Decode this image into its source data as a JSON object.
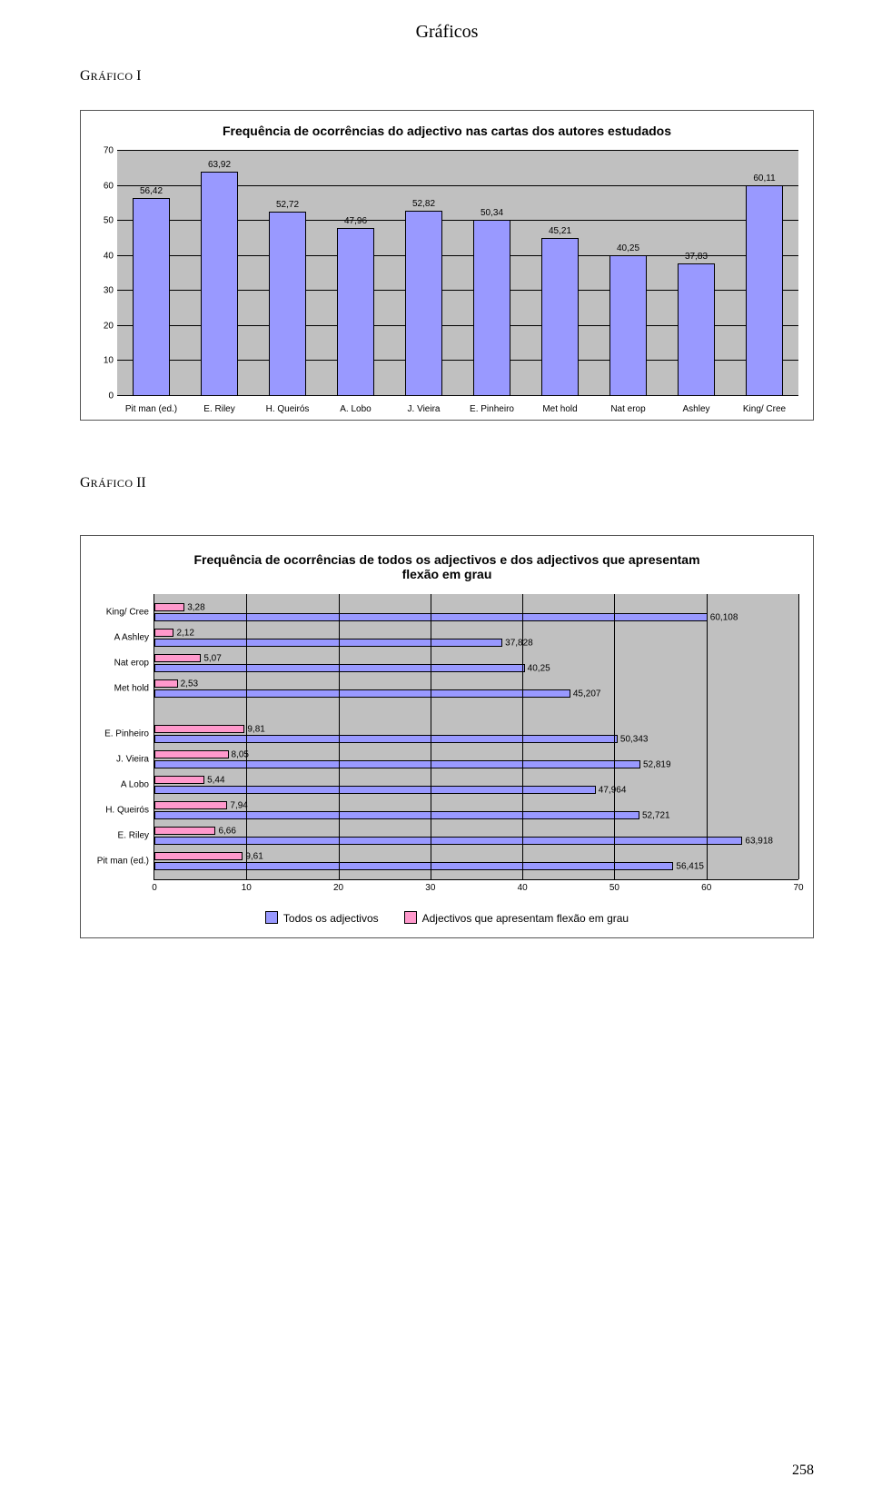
{
  "doc_title": "Gráficos",
  "page_number": "258",
  "heading1": {
    "lead": "G",
    "rest": "RÁFICO ",
    "suffix": "I"
  },
  "heading2": {
    "lead": "G",
    "rest": "RÁFICO ",
    "suffix": "II"
  },
  "chart1": {
    "type": "bar",
    "title": "Frequência de ocorrências do adjectivo nas cartas dos autores estudados",
    "categories": [
      "Pit man (ed.)",
      "E. Riley",
      "H. Queirós",
      "A. Lobo",
      "J. Vieira",
      "E. Pinheiro",
      "Met hold",
      "Nat erop",
      "Ashley",
      "King/ Cree"
    ],
    "values": [
      56.42,
      63.92,
      52.72,
      47.96,
      52.82,
      50.34,
      45.21,
      40.25,
      37.83,
      60.11
    ],
    "value_labels": [
      "56,42",
      "63,92",
      "52,72",
      "47,96",
      "52,82",
      "50,34",
      "45,21",
      "40,25",
      "37,83",
      "60,11"
    ],
    "ylim": [
      0,
      70
    ],
    "ytick_step": 10,
    "bar_color": "#9999ff",
    "plot_bg": "#c0c0c0",
    "grid_color": "#000000",
    "bar_width_ratio": 0.55,
    "title_fontsize": 14,
    "label_fontsize": 10
  },
  "chart2": {
    "type": "horizontal_bar_grouped",
    "title": "Frequência de ocorrências de todos os adjectivos e dos adjectivos que apresentam flexão em grau",
    "xlim": [
      0,
      70
    ],
    "xtick_step": 10,
    "plot_bg": "#c0c0c0",
    "grid_color": "#000000",
    "title_fontsize": 14,
    "label_fontsize": 10,
    "series": [
      {
        "name": "grau",
        "color": "#ff99cc",
        "legend": "Adjectivos que apresentam flexão em grau"
      },
      {
        "name": "todos",
        "color": "#9999ff",
        "legend": "Todos os adjectivos"
      }
    ],
    "legend_order": [
      "todos",
      "grau"
    ],
    "groups": [
      {
        "rows": [
          {
            "cat": "King/ Cree",
            "grau": 3.28,
            "grau_label": "3,28",
            "todos": 60.108,
            "todos_label": "60,108"
          },
          {
            "cat": "A Ashley",
            "grau": 2.12,
            "grau_label": "2,12",
            "todos": 37.828,
            "todos_label": "37,828"
          },
          {
            "cat": "Nat erop",
            "grau": 5.07,
            "grau_label": "5,07",
            "todos": 40.25,
            "todos_label": "40,25"
          },
          {
            "cat": "Met hold",
            "grau": 2.53,
            "grau_label": "2,53",
            "todos": 45.207,
            "todos_label": "45,207"
          }
        ]
      },
      {
        "rows": [
          {
            "cat": "E. Pinheiro",
            "grau": 9.81,
            "grau_label": "9,81",
            "todos": 50.343,
            "todos_label": "50,343"
          },
          {
            "cat": "J. Vieira",
            "grau": 8.05,
            "grau_label": "8,05",
            "todos": 52.819,
            "todos_label": "52,819"
          },
          {
            "cat": "A Lobo",
            "grau": 5.44,
            "grau_label": "5,44",
            "todos": 47.964,
            "todos_label": "47,964"
          },
          {
            "cat": "H. Queirós",
            "grau": 7.94,
            "grau_label": "7,94",
            "todos": 52.721,
            "todos_label": "52,721"
          },
          {
            "cat": "E. Riley",
            "grau": 6.66,
            "grau_label": "6,66",
            "todos": 63.918,
            "todos_label": "63,918"
          },
          {
            "cat": "Pit man (ed.)",
            "grau": 9.61,
            "grau_label": "9,61",
            "todos": 56.415,
            "todos_label": "56,415"
          }
        ]
      }
    ]
  }
}
